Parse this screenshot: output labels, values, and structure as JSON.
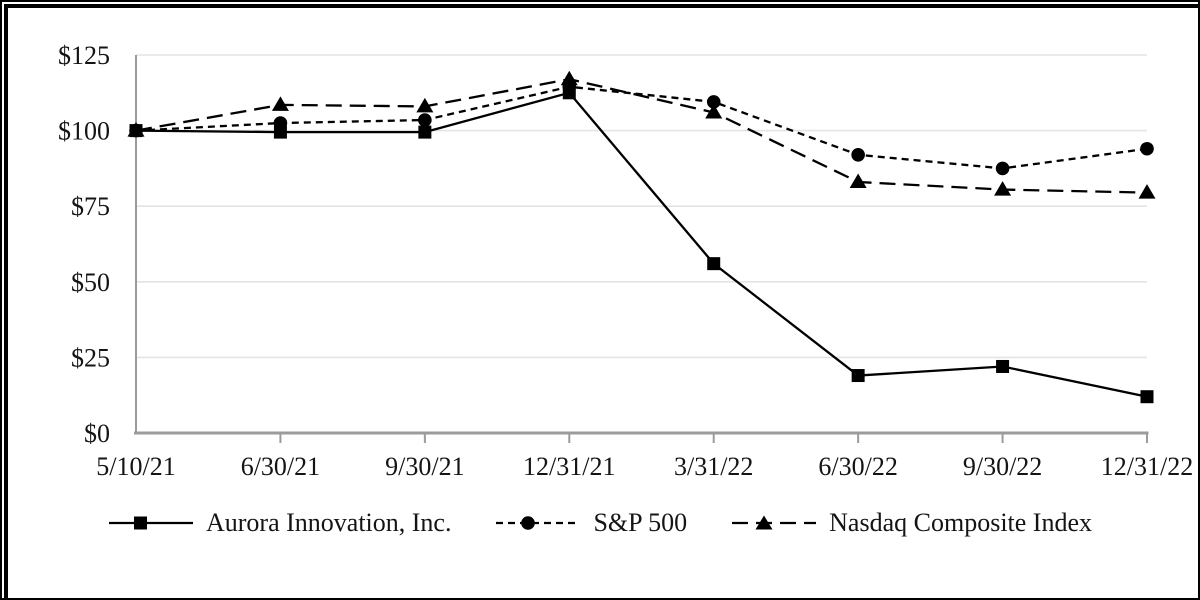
{
  "chart_data": {
    "type": "line",
    "x_labels": [
      "5/10/21",
      "6/30/21",
      "9/30/21",
      "12/31/21",
      "3/31/22",
      "6/30/22",
      "9/30/22",
      "12/31/22"
    ],
    "y_ticks": [
      0,
      25,
      50,
      75,
      100,
      125
    ],
    "y_tick_labels": [
      "$0",
      "$25",
      "$50",
      "$75",
      "$100",
      "$125"
    ],
    "ylim": [
      0,
      125
    ],
    "grid": "horizontal-only",
    "legend_position": "bottom",
    "series": [
      {
        "name": "Aurora Innovation, Inc.",
        "marker": "square",
        "line_style": "solid",
        "color": "#000000",
        "values": [
          100,
          99.5,
          99.5,
          112.5,
          56,
          19,
          22,
          12
        ]
      },
      {
        "name": "S&P 500",
        "marker": "circle",
        "line_style": "dashed-short",
        "color": "#000000",
        "values": [
          100,
          102.5,
          103.5,
          114.5,
          109.5,
          92,
          87.5,
          94
        ]
      },
      {
        "name": "Nasdaq Composite Index",
        "marker": "triangle",
        "line_style": "dashed-long",
        "color": "#000000",
        "values": [
          100,
          108.5,
          108,
          117,
          106,
          83,
          80.5,
          79.5
        ]
      }
    ],
    "style": {
      "grid_color": "#e4e4e4",
      "axis_color": "#9b9b9b",
      "text_color": "#141414",
      "frame_color": "#000000"
    }
  }
}
